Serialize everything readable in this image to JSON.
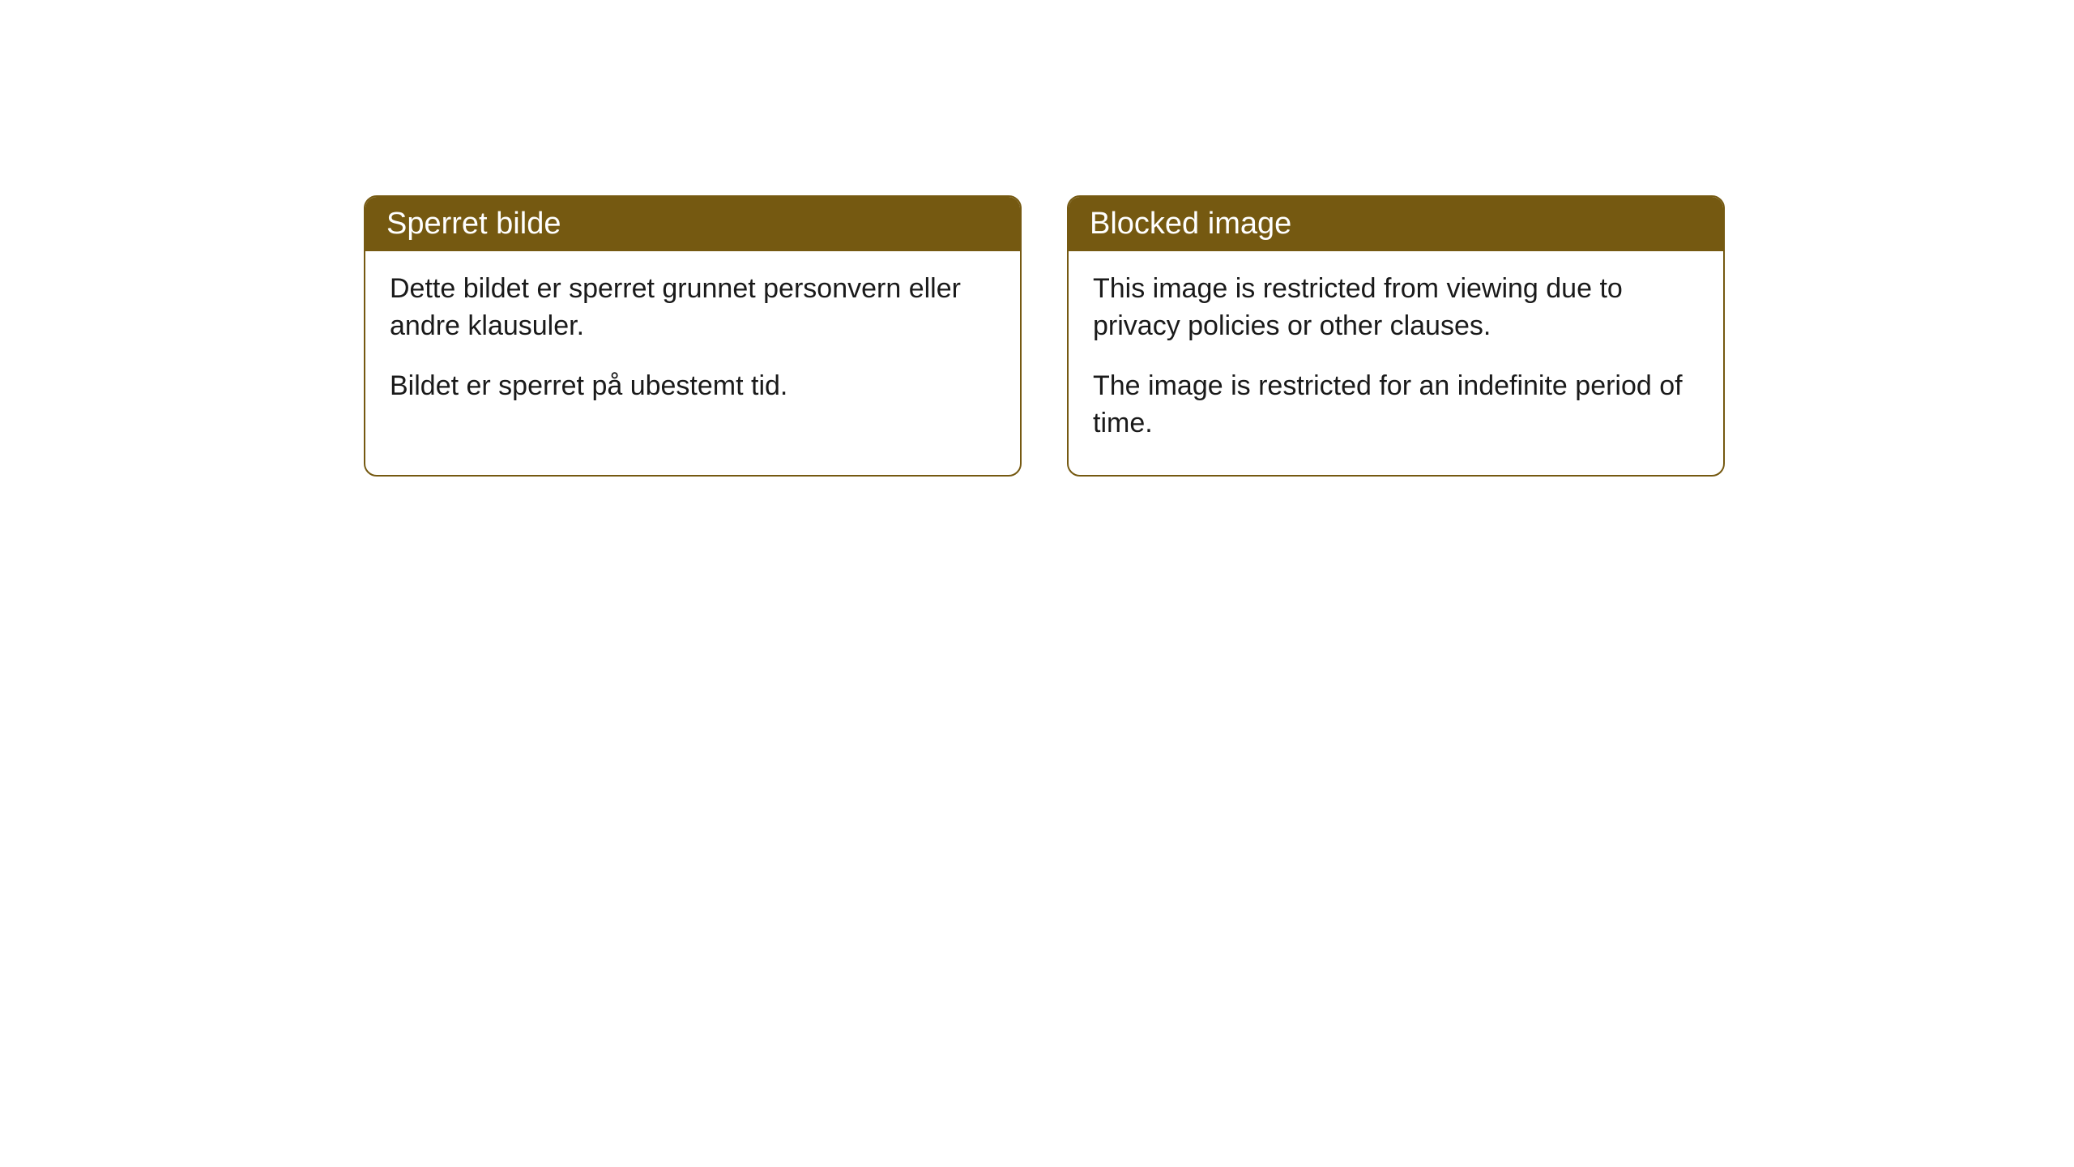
{
  "cards": [
    {
      "title": "Sperret bilde",
      "paragraph1": "Dette bildet er sperret grunnet personvern eller andre klausuler.",
      "paragraph2": "Bildet er sperret på ubestemt tid."
    },
    {
      "title": "Blocked image",
      "paragraph1": "This image is restricted from viewing due to privacy policies or other clauses.",
      "paragraph2": "The image is restricted for an indefinite period of time."
    }
  ],
  "style": {
    "header_bg_color": "#755911",
    "header_text_color": "#ffffff",
    "border_color": "#755911",
    "body_text_color": "#1a1a1a",
    "background_color": "#ffffff",
    "border_radius": 16,
    "title_fontsize": 38,
    "body_fontsize": 34
  }
}
